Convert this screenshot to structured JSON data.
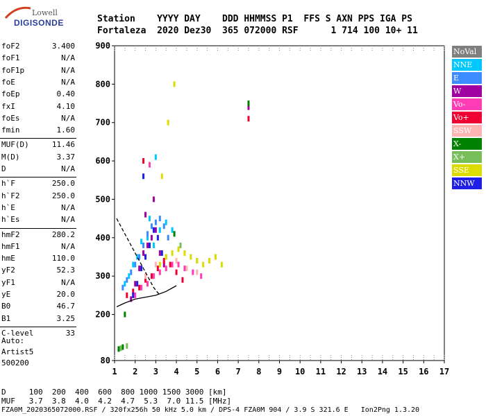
{
  "logo": {
    "line1": "Lowell",
    "line2": "DIGISONDE"
  },
  "header": {
    "row1": "Station    YYYY DAY    DDD HHMMSS P1  FFS S AXN PPS IGA PS",
    "row2": "Fortaleza  2020 Dez30  365 072000 RSF      1 714 100 10+ 11"
  },
  "params": [
    {
      "k": "foF2",
      "v": "3.400"
    },
    {
      "k": "foF1",
      "v": "N/A"
    },
    {
      "k": "foF1p",
      "v": "N/A"
    },
    {
      "k": "foE",
      "v": "N/A"
    },
    {
      "k": "foEp",
      "v": "0.40"
    },
    {
      "k": "fxI",
      "v": "4.10"
    },
    {
      "k": "foEs",
      "v": "N/A"
    },
    {
      "k": "fmin",
      "v": "1.60"
    },
    {
      "k": "MUF(D)",
      "v": "11.46"
    },
    {
      "k": "M(D)",
      "v": "3.37"
    },
    {
      "k": "D",
      "v": "N/A"
    },
    {
      "k": "h`F",
      "v": "250.0"
    },
    {
      "k": "h`F2",
      "v": "250.0"
    },
    {
      "k": "h`E",
      "v": "N/A"
    },
    {
      "k": "h`Es",
      "v": "N/A"
    },
    {
      "k": "hmF2",
      "v": "280.2"
    },
    {
      "k": "hmF1",
      "v": "N/A"
    },
    {
      "k": "hmE",
      "v": "110.0"
    },
    {
      "k": "yF2",
      "v": "52.3"
    },
    {
      "k": "yF1",
      "v": "N/A"
    },
    {
      "k": "yE",
      "v": "20.0"
    },
    {
      "k": "B0",
      "v": "46.7"
    },
    {
      "k": "B1",
      "v": "3.25"
    },
    {
      "k": "C-level",
      "v": "33"
    }
  ],
  "auto": [
    "Auto:",
    "Artist5",
    "500200"
  ],
  "legend": [
    {
      "label": "NoVal",
      "color": "#7f7f7f"
    },
    {
      "label": "NNE",
      "color": "#00c8ff"
    },
    {
      "label": "E",
      "color": "#3c8cff"
    },
    {
      "label": "W",
      "color": "#a000a0"
    },
    {
      "label": "Vo-",
      "color": "#ff3cb4"
    },
    {
      "label": "Vo+",
      "color": "#f00032"
    },
    {
      "label": "SSW",
      "color": "#ffb4b4"
    },
    {
      "label": "X-",
      "color": "#008200"
    },
    {
      "label": "X+",
      "color": "#78be5a"
    },
    {
      "label": "SSE",
      "color": "#dcdc00"
    },
    {
      "label": "NNW",
      "color": "#1e1ee6"
    }
  ],
  "bottom": {
    "row1": "D     100  200  400  600  800 1000 1500 3000 [km]",
    "row2": "MUF   3.7  3.8  4.0  4.2  4.7  5.3  7.0 11.5 [MHz]",
    "row3": "FZA0M_2020365072000.RSF / 320fx256h 50 kHz 5.0 km / DPS-4 FZA0M 904 / 3.9 S 321.6 E   Ion2Png 1.3.20"
  },
  "chart_data": {
    "type": "scatter",
    "x_range": [
      1,
      17
    ],
    "y_range": [
      80,
      900
    ],
    "x_ticks": [
      1,
      2,
      3,
      4,
      5,
      6,
      7,
      8,
      9,
      10,
      11,
      12,
      13,
      14,
      15,
      16,
      17
    ],
    "y_ticks": [
      80,
      200,
      300,
      400,
      500,
      600,
      700,
      800,
      900
    ],
    "grid": false,
    "legend_position": "right",
    "x_dotted_minor": true,
    "series": [
      {
        "name": "NNE",
        "color": "#00c8ff",
        "x": [
          1.5,
          1.7,
          1.9,
          2.1,
          2.3,
          2.6,
          2.9,
          3.2,
          3.5,
          3.8,
          3.0,
          2.7
        ],
        "y": [
          280,
          300,
          330,
          350,
          390,
          400,
          380,
          420,
          440,
          420,
          610,
          450
        ]
      },
      {
        "name": "E",
        "color": "#3c8cff",
        "x": [
          1.4,
          1.6,
          1.8,
          2.0,
          2.2,
          2.4,
          2.6,
          2.8,
          3.0,
          3.2,
          3.4,
          3.6
        ],
        "y": [
          270,
          290,
          310,
          330,
          350,
          380,
          410,
          430,
          440,
          450,
          430,
          400
        ]
      },
      {
        "name": "W",
        "color": "#a000a0",
        "x": [
          1.8,
          2.0,
          2.2,
          2.4,
          2.6,
          2.8,
          3.0,
          3.2,
          3.4,
          2.5,
          2.9,
          7.5
        ],
        "y": [
          240,
          280,
          320,
          360,
          380,
          400,
          420,
          360,
          330,
          460,
          500,
          740
        ]
      },
      {
        "name": "Vo-",
        "color": "#ff3cb4",
        "x": [
          2.0,
          2.3,
          2.6,
          2.9,
          3.2,
          3.5,
          3.8,
          4.1,
          4.4,
          4.8,
          5.2,
          2.7
        ],
        "y": [
          250,
          270,
          280,
          300,
          310,
          320,
          330,
          330,
          320,
          310,
          300,
          590
        ]
      },
      {
        "name": "Vo+",
        "color": "#f00032",
        "x": [
          1.6,
          1.9,
          2.2,
          2.5,
          2.8,
          3.1,
          3.4,
          3.7,
          4.0,
          4.3,
          2.4,
          7.5
        ],
        "y": [
          250,
          260,
          270,
          290,
          300,
          320,
          340,
          330,
          310,
          290,
          600,
          710
        ]
      },
      {
        "name": "SSW",
        "color": "#ffb4b4",
        "x": [
          2.5,
          3.0,
          3.5,
          4.0,
          4.5,
          5.0
        ],
        "y": [
          300,
          330,
          350,
          340,
          320,
          310
        ]
      },
      {
        "name": "X-",
        "color": "#008200",
        "x": [
          1.2,
          1.4,
          1.5,
          3.9,
          7.5
        ],
        "y": [
          110,
          115,
          200,
          410,
          750
        ]
      },
      {
        "name": "X+",
        "color": "#78be5a",
        "x": [
          1.3,
          1.6,
          3.5,
          4.2,
          5.0
        ],
        "y": [
          112,
          118,
          350,
          380,
          340
        ]
      },
      {
        "name": "SSE",
        "color": "#dcdc00",
        "x": [
          3.2,
          3.5,
          3.8,
          4.1,
          4.4,
          4.7,
          5.0,
          5.3,
          5.6,
          5.9,
          6.2,
          3.6,
          3.9,
          3.3
        ],
        "y": [
          330,
          350,
          360,
          370,
          360,
          350,
          340,
          330,
          340,
          350,
          330,
          700,
          800,
          560
        ]
      },
      {
        "name": "NNW",
        "color": "#1e1ee6",
        "x": [
          1.9,
          2.1,
          2.3,
          2.5,
          2.7,
          2.9,
          3.1,
          3.3,
          2.4
        ],
        "y": [
          250,
          280,
          320,
          350,
          380,
          420,
          400,
          360,
          560
        ]
      }
    ],
    "curves": [
      {
        "style": "dashed",
        "x": [
          1.1,
          1.4,
          1.7,
          2.0,
          2.3,
          2.6,
          2.9,
          3.2
        ],
        "y": [
          450,
          420,
          390,
          360,
          330,
          300,
          270,
          250
        ]
      },
      {
        "style": "solid",
        "x": [
          1.1,
          1.5,
          2.0,
          2.5,
          3.0,
          3.5,
          4.0
        ],
        "y": [
          220,
          230,
          240,
          245,
          250,
          260,
          275
        ]
      }
    ]
  }
}
